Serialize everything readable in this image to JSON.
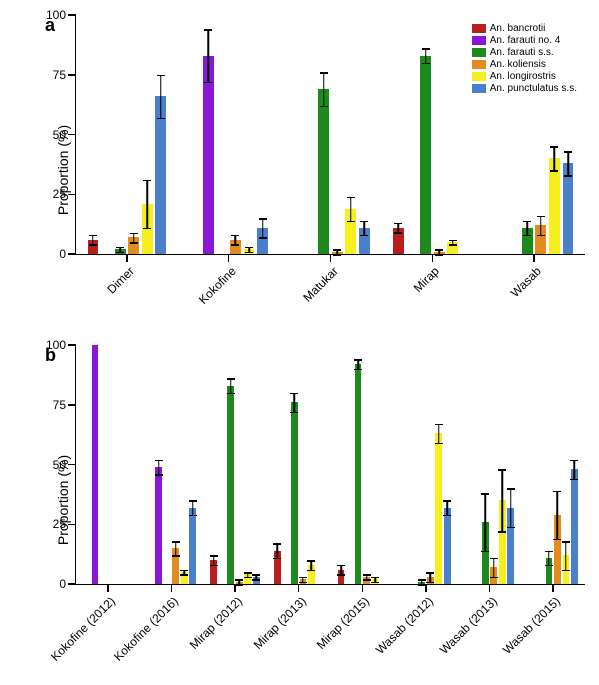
{
  "series": [
    {
      "name": "An. bancrotii",
      "color": "#b81e1e"
    },
    {
      "name": "An. farauti no. 4",
      "color": "#8a17d6"
    },
    {
      "name": "An. farauti s.s.",
      "color": "#1e8a1e"
    },
    {
      "name": "An. koliensis",
      "color": "#e38b1e"
    },
    {
      "name": "An. longirostris",
      "color": "#f5ef1e"
    },
    {
      "name": "An. punctulatus s.s.",
      "color": "#4a7fc9"
    }
  ],
  "axis": {
    "ylabel": "Proportion (%)",
    "ylim": [
      0,
      100
    ],
    "yticks": [
      0,
      25,
      50,
      75,
      100
    ],
    "label_fontsize": 14,
    "tick_fontsize": 12,
    "bar_rel_width": 0.8
  },
  "panel_a": {
    "label": "a",
    "categories": [
      "Dimer",
      "Kokofine",
      "Matukar",
      "Mirap",
      "Wasab"
    ],
    "data": [
      {
        "values": [
          6,
          0,
          2,
          7,
          21,
          66
        ],
        "err": [
          2,
          0,
          1,
          2,
          10,
          9
        ]
      },
      {
        "values": [
          0,
          83,
          0,
          6,
          2,
          11
        ],
        "err": [
          0,
          11,
          0,
          2,
          1,
          4
        ]
      },
      {
        "values": [
          0,
          0,
          69,
          1,
          19,
          11
        ],
        "err": [
          0,
          0,
          7,
          1,
          5,
          3
        ]
      },
      {
        "values": [
          11,
          0,
          83,
          1,
          5,
          0
        ],
        "err": [
          2,
          0,
          3,
          1,
          1,
          0
        ]
      },
      {
        "values": [
          0,
          0,
          11,
          12,
          40,
          38
        ],
        "err": [
          0,
          0,
          3,
          4,
          5,
          5
        ]
      }
    ]
  },
  "panel_b": {
    "label": "b",
    "categories": [
      "Kokofine (2012)",
      "Kokofine (2016)",
      "Mirap (2012)",
      "Mirap (2013)",
      "Mirap (2015)",
      "Wasab (2012)",
      "Wasab (2013)",
      "Wasab (2015)"
    ],
    "data": [
      {
        "values": [
          0,
          100,
          0,
          0,
          0,
          0
        ],
        "err": [
          0,
          0,
          0,
          0,
          0,
          0
        ]
      },
      {
        "values": [
          0,
          49,
          0,
          15,
          5,
          32
        ],
        "err": [
          0,
          3,
          0,
          3,
          1,
          3
        ]
      },
      {
        "values": [
          10,
          0,
          83,
          1,
          4,
          3
        ],
        "err": [
          2,
          0,
          3,
          1,
          1,
          1
        ]
      },
      {
        "values": [
          14,
          0,
          76,
          2,
          8,
          0
        ],
        "err": [
          3,
          0,
          4,
          1,
          2,
          0
        ]
      },
      {
        "values": [
          6,
          0,
          92,
          3,
          2,
          0
        ],
        "err": [
          2,
          0,
          2,
          1,
          1,
          0
        ]
      },
      {
        "values": [
          0,
          0,
          1,
          3,
          63,
          32
        ],
        "err": [
          0,
          0,
          1,
          2,
          4,
          3
        ]
      },
      {
        "values": [
          0,
          0,
          26,
          7,
          35,
          32
        ],
        "err": [
          0,
          0,
          12,
          4,
          13,
          8
        ]
      },
      {
        "values": [
          0,
          0,
          11,
          29,
          12,
          48
        ],
        "err": [
          0,
          0,
          3,
          10,
          6,
          4
        ]
      }
    ]
  }
}
